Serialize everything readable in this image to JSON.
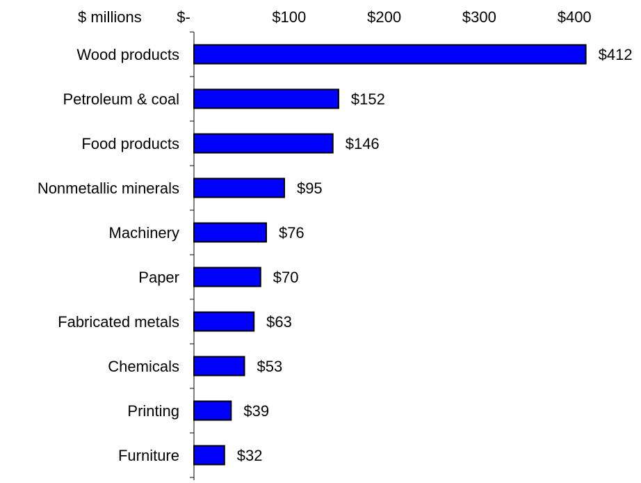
{
  "chart_data": {
    "type": "bar",
    "orientation": "horizontal",
    "unit_label": "$ millions",
    "categories": [
      "Wood products",
      "Petroleum & coal",
      "Food products",
      "Nonmetallic minerals",
      "Machinery",
      "Paper",
      "Fabricated metals",
      "Chemicals",
      "Printing",
      "Furniture"
    ],
    "values": [
      412,
      152,
      146,
      95,
      76,
      70,
      63,
      53,
      39,
      32
    ],
    "data_labels": [
      "$412",
      "$152",
      "$146",
      "$95",
      "$76",
      "$70",
      "$63",
      "$53",
      "$39",
      "$32"
    ],
    "x_ticks": [
      0,
      100,
      200,
      300,
      400
    ],
    "x_tick_labels": [
      "$-",
      "$100",
      "$200",
      "$300",
      "$400"
    ],
    "xlim": [
      0,
      450
    ],
    "axis_position": "top",
    "grid": false,
    "legend": "none",
    "bar_color": "#0000FF",
    "bar_outline_color": "#000000"
  }
}
